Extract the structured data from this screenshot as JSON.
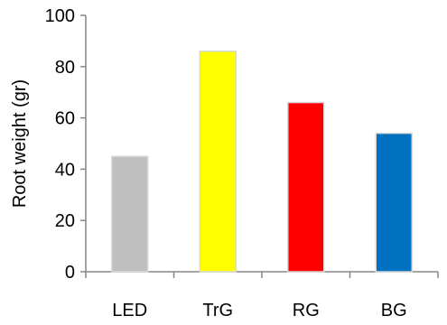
{
  "chart_data": {
    "type": "bar",
    "categories": [
      "LED",
      "TrG",
      "RG",
      "BG"
    ],
    "values": [
      45,
      86,
      66,
      54
    ],
    "colors": [
      "#bfbfbf",
      "#ffff00",
      "#ff0000",
      "#0070c0"
    ],
    "ylabel": "Root weight (gr)",
    "xlabel": "",
    "ylim": [
      0,
      100
    ],
    "yticks": [
      0,
      20,
      40,
      60,
      80,
      100
    ],
    "grid": false,
    "legend": "none"
  }
}
